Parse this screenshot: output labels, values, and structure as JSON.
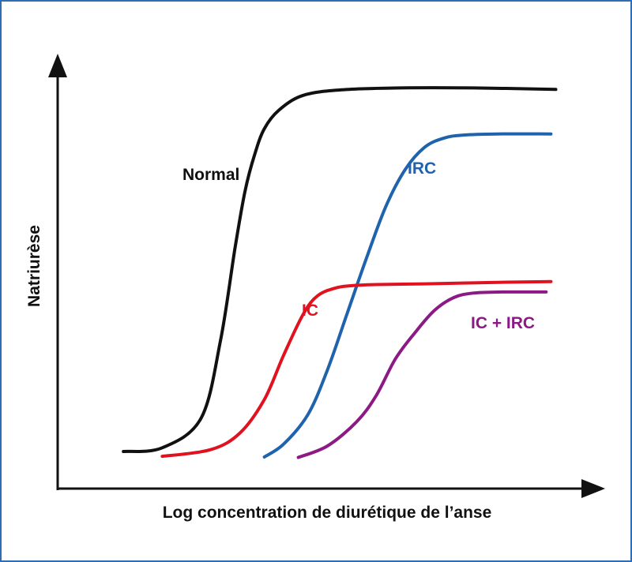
{
  "chart_data": {
    "type": "line",
    "xlabel": "Log concentration de diurétique de l’anse",
    "ylabel": "Natriurèse",
    "ticks": "none",
    "grid": false,
    "legend": "inline labels",
    "xlim": [
      0,
      100
    ],
    "ylim": [
      0,
      100
    ],
    "series": [
      {
        "name": "Normal",
        "color": "#111111",
        "label_color": "#111111",
        "x": [
          8,
          16,
          24,
          28,
          31,
          33,
          35,
          37,
          40,
          45,
          53,
          65,
          80,
          97
        ],
        "y": [
          0,
          1,
          9,
          30,
          55,
          70,
          80,
          87,
          92,
          96,
          97.5,
          98,
          98,
          97.6
        ]
      },
      {
        "name": "IRC",
        "color": "#1f63ad",
        "label_color": "#1f63ad",
        "x": [
          37,
          41,
          46,
          50,
          54,
          58,
          62,
          66,
          70,
          74,
          78,
          85,
          96
        ],
        "y": [
          -1.5,
          2,
          10,
          22,
          37,
          52,
          66,
          76,
          82,
          84.5,
          85.3,
          85.6,
          85.6
        ]
      },
      {
        "name": "IC",
        "color": "#e0121f",
        "label_color": "#e0121f",
        "x": [
          16,
          26,
          32,
          37,
          41,
          45,
          48,
          52,
          56,
          60,
          70,
          85,
          96
        ],
        "y": [
          -1.3,
          0.5,
          5,
          14,
          26,
          37,
          42,
          44.2,
          44.8,
          45,
          45.2,
          45.6,
          45.8
        ]
      },
      {
        "name": "IC + IRC",
        "color": "#8b1a85",
        "label_color": "#8b1a85",
        "x": [
          44,
          50,
          56,
          60,
          64,
          68,
          72,
          76,
          80,
          86,
          95
        ],
        "y": [
          -1.6,
          1.5,
          8,
          15,
          25,
          32,
          38,
          41.5,
          42.7,
          43,
          43
        ]
      }
    ]
  }
}
